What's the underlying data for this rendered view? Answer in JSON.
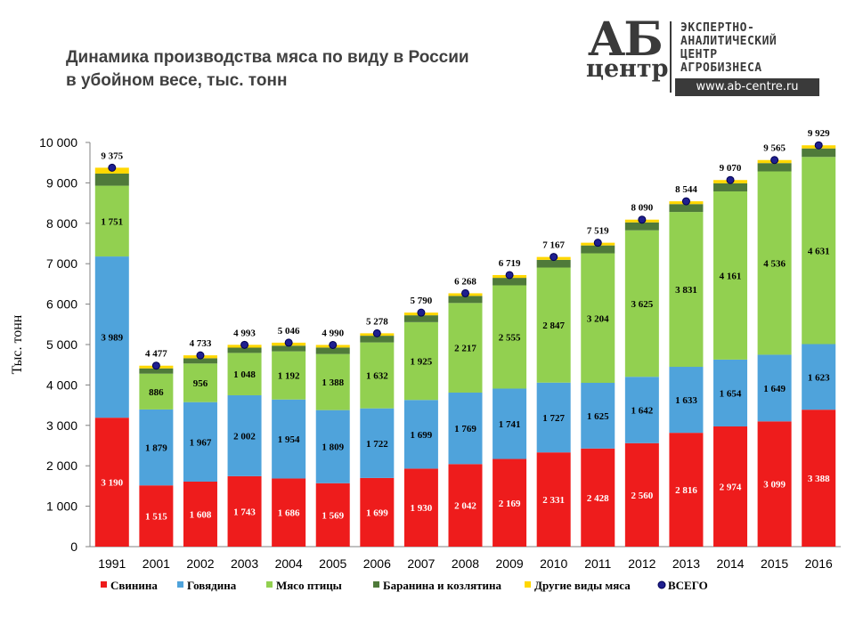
{
  "title_line1": "Динамика производства мяса по виду в России",
  "title_line2": "в убойном весе, тыс. тонн",
  "logo": {
    "big": "АБ",
    "small": "центр",
    "line1": "ЭКСПЕРТНО-",
    "line2": "АНАЛИТИЧЕСКИЙ",
    "line3": "ЦЕНТР",
    "line4": "АГРОБИЗНЕСА",
    "url": "www.ab-centre.ru"
  },
  "chart_data": {
    "type": "bar",
    "stacked": true,
    "ylabel": "Тыс. тонн",
    "ylim": [
      0,
      10000
    ],
    "yticks": [
      "0",
      "1 000",
      "2 000",
      "3 000",
      "4 000",
      "5 000",
      "6 000",
      "7 000",
      "8 000",
      "9 000",
      "10 000"
    ],
    "categories": [
      "1991",
      "2001",
      "2002",
      "2003",
      "2004",
      "2005",
      "2006",
      "2007",
      "2008",
      "2009",
      "2010",
      "2011",
      "2012",
      "2013",
      "2014",
      "2015",
      "2016"
    ],
    "series": [
      {
        "name": "Свинина",
        "color": "#ee1c1c",
        "values": [
          3190,
          1515,
          1608,
          1743,
          1686,
          1569,
          1699,
          1930,
          2042,
          2169,
          2331,
          2428,
          2560,
          2816,
          2974,
          3099,
          3388
        ],
        "labels": [
          "3 190",
          "1 515",
          "1 608",
          "1 743",
          "1 686",
          "1 569",
          "1 699",
          "1 930",
          "2 042",
          "2 169",
          "2 331",
          "2 428",
          "2 560",
          "2 816",
          "2 974",
          "3 099",
          "3 388"
        ]
      },
      {
        "name": "Говядина",
        "color": "#4fa3db",
        "values": [
          3989,
          1879,
          1967,
          2002,
          1954,
          1809,
          1722,
          1699,
          1769,
          1741,
          1727,
          1625,
          1642,
          1633,
          1654,
          1649,
          1623
        ],
        "labels": [
          "3 989",
          "1 879",
          "1 967",
          "2 002",
          "1 954",
          "1 809",
          "1 722",
          "1 699",
          "1 769",
          "1 741",
          "1 727",
          "1 625",
          "1 642",
          "1 633",
          "1 654",
          "1 649",
          "1 623"
        ]
      },
      {
        "name": "Мясо птицы",
        "color": "#92d050",
        "values": [
          1751,
          886,
          956,
          1048,
          1192,
          1388,
          1632,
          1925,
          2217,
          2555,
          2847,
          3204,
          3625,
          3831,
          4161,
          4536,
          4631
        ],
        "labels": [
          "1 751",
          "886",
          "956",
          "1 048",
          "1 192",
          "1 388",
          "1 632",
          "1 925",
          "2 217",
          "2 555",
          "2 847",
          "3 204",
          "3 625",
          "3 831",
          "4 161",
          "4 536",
          "4 631"
        ]
      },
      {
        "name": "Баранина и козлятина",
        "color": "#4f7a3a",
        "values": [
          300,
          130,
          130,
          130,
          140,
          160,
          165,
          170,
          175,
          185,
          190,
          195,
          195,
          195,
          200,
          205,
          210
        ],
        "labels": []
      },
      {
        "name": "Другие виды мяса",
        "color": "#ffd700",
        "values": [
          145,
          67,
          72,
          70,
          74,
          64,
          60,
          66,
          65,
          69,
          72,
          67,
          68,
          69,
          81,
          76,
          77
        ],
        "labels": []
      }
    ],
    "totals": {
      "name": "ВСЕГО",
      "values": [
        9375,
        4477,
        4733,
        4993,
        5046,
        4990,
        5278,
        5790,
        6268,
        6719,
        7167,
        7519,
        8090,
        8544,
        9070,
        9565,
        9929
      ],
      "labels": [
        "9 375",
        "4 477",
        "4 733",
        "4 993",
        "5 046",
        "4 990",
        "5 278",
        "5 790",
        "6 268",
        "6 719",
        "7 167",
        "7 519",
        "8 090",
        "8 544",
        "9 070",
        "9 565",
        "9 929"
      ]
    },
    "legend_position": "bottom",
    "grid": false
  }
}
